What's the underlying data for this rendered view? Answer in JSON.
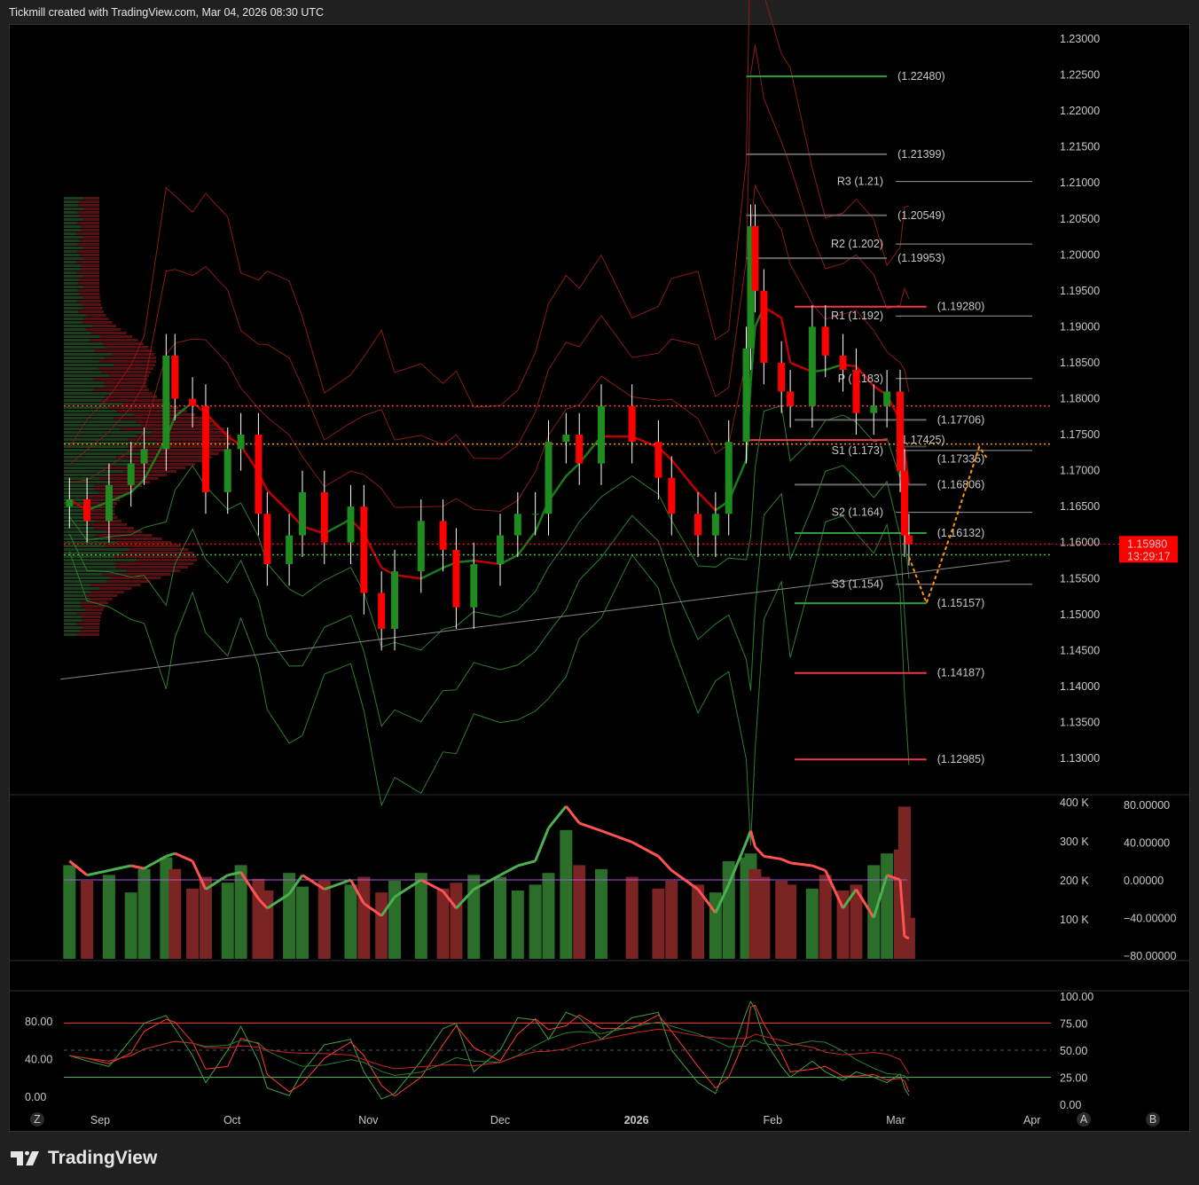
{
  "header": {
    "caption": "Tickmill created with TradingView.com, Mar 04, 2026 08:30 UTC"
  },
  "branding": {
    "logo_text": "TradingView"
  },
  "price_badge": {
    "price": "1.15980",
    "countdown": "13:29:17",
    "color": "#ff0000"
  },
  "buttons": {
    "z": "Z",
    "a": "A",
    "b": "B"
  },
  "chart_data": [
    {
      "type": "candlestick",
      "title": "",
      "ylim": [
        1.13,
        1.23
      ],
      "y_ticks": [
        "1.23000",
        "1.22500",
        "1.22000",
        "1.21500",
        "1.21000",
        "1.20500",
        "1.20000",
        "1.19500",
        "1.19000",
        "1.18500",
        "1.18000",
        "1.17500",
        "1.17000",
        "1.16500",
        "1.16000",
        "1.15500",
        "1.15000",
        "1.14500",
        "1.14000",
        "1.13500",
        "1.13000"
      ],
      "x_ticks": [
        {
          "label": "Sep",
          "date": "2025-09-01"
        },
        {
          "label": "Oct",
          "date": "2025-10-01"
        },
        {
          "label": "Nov",
          "date": "2025-11-01"
        },
        {
          "label": "Dec",
          "date": "2025-12-01"
        },
        {
          "label": "2026",
          "date": "2026-01-01",
          "bold": true
        },
        {
          "label": "Feb",
          "date": "2026-02-01"
        },
        {
          "label": "Mar",
          "date": "2026-03-01"
        },
        {
          "label": "Apr",
          "date": "2026-04-01"
        }
      ],
      "dates": [
        "2025-08-25",
        "2025-08-29",
        "2025-09-03",
        "2025-09-08",
        "2025-09-11",
        "2025-09-16",
        "2025-09-18",
        "2025-09-22",
        "2025-09-25",
        "2025-09-30",
        "2025-10-03",
        "2025-10-07",
        "2025-10-09",
        "2025-10-14",
        "2025-10-17",
        "2025-10-22",
        "2025-10-28",
        "2025-10-31",
        "2025-11-04",
        "2025-11-07",
        "2025-11-13",
        "2025-11-18",
        "2025-11-21",
        "2025-11-25",
        "2025-12-01",
        "2025-12-05",
        "2025-12-09",
        "2025-12-12",
        "2025-12-16",
        "2025-12-19",
        "2025-12-24",
        "2025-12-31",
        "2026-01-06",
        "2026-01-09",
        "2026-01-15",
        "2026-01-19",
        "2026-01-22",
        "2026-01-26",
        "2026-01-27",
        "2026-01-28",
        "2026-01-30",
        "2026-02-03",
        "2026-02-05",
        "2026-02-10",
        "2026-02-13",
        "2026-02-17",
        "2026-02-20",
        "2026-02-24",
        "2026-02-27",
        "2026-03-02",
        "2026-03-03",
        "2026-03-04"
      ],
      "close": [
        1.166,
        1.163,
        1.168,
        1.171,
        1.173,
        1.186,
        1.18,
        1.179,
        1.167,
        1.173,
        1.175,
        1.164,
        1.157,
        1.161,
        1.167,
        1.16,
        1.165,
        1.153,
        1.148,
        1.156,
        1.163,
        1.159,
        1.151,
        1.157,
        1.161,
        1.164,
        1.164,
        1.174,
        1.175,
        1.171,
        1.179,
        1.174,
        1.169,
        1.164,
        1.161,
        1.164,
        1.174,
        1.187,
        1.204,
        1.195,
        1.185,
        1.181,
        1.179,
        1.19,
        1.186,
        1.184,
        1.178,
        1.179,
        1.181,
        1.17,
        1.161,
        1.1598
      ],
      "levels": [
        {
          "label": "(1.22480)",
          "value": 1.2248,
          "color": "#2e9e3a",
          "from": "2026-01-26",
          "to": "2026-02-27"
        },
        {
          "label": "(1.21399)",
          "value": 1.21399,
          "color": "#666666",
          "from": "2026-01-26",
          "to": "2026-02-27"
        },
        {
          "label": "(1.20549)",
          "value": 1.20549,
          "color": "#666666",
          "from": "2026-01-26",
          "to": "2026-02-27"
        },
        {
          "label": "(1.19953)",
          "value": 1.19953,
          "color": "#666666",
          "from": "2026-01-26",
          "to": "2026-02-27"
        },
        {
          "label": "(1.19280)",
          "value": 1.1928,
          "color": "#f23645",
          "from": "2026-02-06",
          "to": "2026-03-08"
        },
        {
          "label": "(1.17706)",
          "value": 1.17706,
          "color": "#666666",
          "from": "2026-02-06",
          "to": "2026-03-08"
        },
        {
          "label": "(1.17425)",
          "value": 1.17425,
          "color": "#f23645",
          "from": "2026-01-26",
          "to": "2026-02-27"
        },
        {
          "label": "(1.17335)",
          "value": 1.17335,
          "color": "#444444",
          "from": "2026-03-02",
          "to": "2026-03-08"
        },
        {
          "label": "(1.16806)",
          "value": 1.16806,
          "color": "#666666",
          "from": "2026-02-06",
          "to": "2026-03-08"
        },
        {
          "label": "(1.16132)",
          "value": 1.16132,
          "color": "#2e9e3a",
          "from": "2026-02-06",
          "to": "2026-03-08"
        },
        {
          "label": "(1.15157)",
          "value": 1.15157,
          "color": "#2e9e3a",
          "from": "2026-02-06",
          "to": "2026-03-08"
        },
        {
          "label": "(1.14187)",
          "value": 1.14187,
          "color": "#f23645",
          "from": "2026-02-06",
          "to": "2026-03-08"
        },
        {
          "label": "(1.12985)",
          "value": 1.12985,
          "color": "#f23645",
          "from": "2026-02-06",
          "to": "2026-03-08"
        }
      ],
      "pivots": [
        {
          "label": "R3 (1.21)",
          "value": 1.2102
        },
        {
          "label": "R2 (1.202)",
          "value": 1.2015
        },
        {
          "label": "R1 (1.192)",
          "value": 1.1915
        },
        {
          "label": "P (1.183)",
          "value": 1.1828
        },
        {
          "label": "S1 (1.173)",
          "value": 1.1728
        },
        {
          "label": "S2 (1.164)",
          "value": 1.1642
        },
        {
          "label": "S3 (1.154)",
          "value": 1.1542
        }
      ],
      "dotted_lines": [
        {
          "value": 1.179,
          "color": "#ff3b30"
        },
        {
          "value": 1.1737,
          "color": "#ff9800"
        },
        {
          "value": 1.1598,
          "color": "#ff0000"
        },
        {
          "value": 1.1583,
          "color": "#4caf50"
        }
      ],
      "trendline": {
        "from": [
          "2025-08-23",
          1.141
        ],
        "to": [
          "2026-03-27",
          1.1575
        ],
        "color": "#888888"
      },
      "projection": {
        "color": "#ff9800",
        "points": [
          [
            "2026-03-04",
            1.158
          ],
          [
            "2026-03-08",
            1.1516
          ],
          [
            "2026-03-14",
            1.162
          ],
          [
            "2026-03-20",
            1.1733
          ],
          [
            "2026-03-22",
            1.1715
          ]
        ]
      },
      "colors": {
        "up": "#1e8c1e",
        "down": "#ff0000",
        "bands": "#8b1a1a",
        "bands_green": "#2e7d32"
      }
    },
    {
      "type": "bar",
      "title": "",
      "y_ticks": [
        "400 K",
        "300 K",
        "200 K",
        "100 K"
      ],
      "ylim": [
        0,
        400
      ],
      "values_k": [
        240,
        200,
        215,
        170,
        230,
        260,
        230,
        180,
        210,
        195,
        240,
        205,
        175,
        220,
        185,
        200,
        190,
        210,
        170,
        200,
        220,
        180,
        195,
        215,
        210,
        175,
        190,
        220,
        330,
        240,
        230,
        210,
        180,
        200,
        190,
        170,
        250,
        260,
        270,
        230,
        210,
        200,
        190,
        180,
        215,
        175,
        190,
        240,
        270,
        280,
        390,
        105
      ],
      "secondary": {
        "type": "line",
        "y_ticks": [
          "80.00000",
          "40.00000",
          "0.00000",
          "−40.00000",
          "−80.00000"
        ],
        "ylim": [
          -80,
          80
        ],
        "zero_color": "#b05ad8",
        "values": [
          20,
          5,
          10,
          15,
          12,
          25,
          28,
          20,
          -10,
          5,
          8,
          -20,
          -30,
          -15,
          5,
          -10,
          0,
          -25,
          -38,
          -18,
          0,
          -12,
          -30,
          -10,
          5,
          15,
          20,
          55,
          78,
          60,
          52,
          40,
          25,
          10,
          -10,
          -35,
          -5,
          40,
          52,
          35,
          25,
          22,
          18,
          15,
          10,
          -30,
          -10,
          -40,
          5,
          0,
          -60,
          -62
        ]
      },
      "stoch": {
        "type": "line",
        "y_ticks_right": [
          "100.00",
          "75.00",
          "50.00",
          "25.00",
          "0.00"
        ],
        "y_ticks_left": [
          "80.00",
          "40.00",
          "0.00"
        ],
        "ylim": [
          0,
          100
        ],
        "upper": 75,
        "lower": 25,
        "k": [
          45,
          40,
          35,
          60,
          75,
          82,
          70,
          45,
          20,
          50,
          72,
          40,
          15,
          8,
          30,
          55,
          60,
          30,
          5,
          10,
          40,
          70,
          75,
          30,
          50,
          80,
          78,
          60,
          85,
          80,
          60,
          80,
          85,
          50,
          20,
          10,
          40,
          85,
          95,
          88,
          60,
          35,
          25,
          40,
          30,
          22,
          30,
          25,
          20,
          28,
          15,
          8
        ]
      }
    }
  ]
}
